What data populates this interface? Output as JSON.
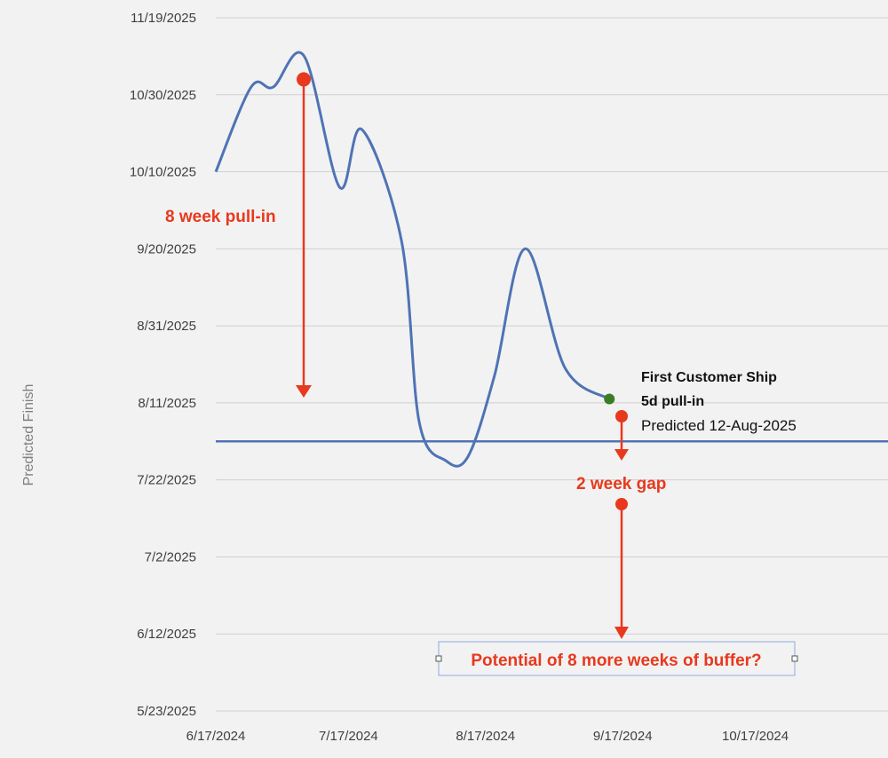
{
  "chart_data": {
    "type": "line",
    "ylabel": "Predicted Finish",
    "xlabel": "",
    "x_ticks": [
      "6/17/2024",
      "7/17/2024",
      "8/17/2024",
      "9/17/2024",
      "10/17/2024"
    ],
    "y_ticks": [
      "11/19/2025",
      "10/30/2025",
      "10/10/2025",
      "9/20/2025",
      "8/31/2025",
      "8/11/2025",
      "7/22/2025",
      "7/2/2025",
      "6/12/2025",
      "5/23/2025"
    ],
    "xlim": [
      "2024-06-17",
      "2024-11-16"
    ],
    "ylim": [
      "2025-05-23",
      "2025-11-19"
    ],
    "grid": "horizontal",
    "line_color": "#4f73b5",
    "series": [
      {
        "points": [
          {
            "x": "2024-06-17",
            "y": "2025-10-10"
          },
          {
            "x": "2024-06-25",
            "y": "2025-11-01"
          },
          {
            "x": "2024-06-30",
            "y": "2025-11-01"
          },
          {
            "x": "2024-07-07",
            "y": "2025-11-09"
          },
          {
            "x": "2024-07-15",
            "y": "2025-10-06"
          },
          {
            "x": "2024-07-20",
            "y": "2025-10-21"
          },
          {
            "x": "2024-07-29",
            "y": "2025-09-22"
          },
          {
            "x": "2024-08-02",
            "y": "2025-08-06"
          },
          {
            "x": "2024-08-08",
            "y": "2025-07-27"
          },
          {
            "x": "2024-08-13",
            "y": "2025-07-28"
          },
          {
            "x": "2024-08-19",
            "y": "2025-08-18"
          },
          {
            "x": "2024-08-26",
            "y": "2025-09-20"
          },
          {
            "x": "2024-09-04",
            "y": "2025-08-20"
          },
          {
            "x": "2024-09-14",
            "y": "2025-08-12"
          }
        ]
      }
    ],
    "reference_line": {
      "y": "2025-08-01",
      "color": "#4f73b5"
    },
    "markers": {
      "fcs_point": {
        "x": "2024-09-14",
        "y": "2025-08-12",
        "color": "#3a7d23"
      },
      "peak_point": {
        "x": "2024-07-06",
        "y": "2025-11-03",
        "color": "#e8391e"
      }
    },
    "annotations": {
      "pull_in_8wk": "8 week pull-in",
      "fcs_title": "First Customer Ship",
      "fcs_pullin": "5d pull-in",
      "fcs_predicted": "Predicted 12-Aug-2025",
      "gap_2wk": "2 week gap",
      "potential": "Potential of 8 more weeks of buffer?"
    },
    "annotation_color": "#e8391e"
  }
}
